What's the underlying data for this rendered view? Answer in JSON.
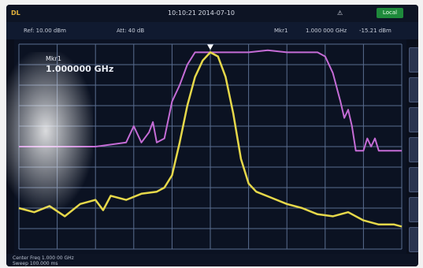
{
  "header": {
    "brand": "DL",
    "datetime": "10:10:21 2014-07-10",
    "lock_status": "Local"
  },
  "infobar": {
    "ref_level": "Ref: 10.00 dBm",
    "attenuation": "Att: 40 dB",
    "marker_label": "Mkr1",
    "marker_freq": "1.000 000 GHz",
    "marker_power": "-15.21 dBm"
  },
  "marker_readout": {
    "label": "Mkr1",
    "frequency": "1.000000 GHz"
  },
  "footer": {
    "center_freq": "Center Freq 1.000 00 GHz",
    "sweep": "Sweep 100.000 ms"
  },
  "trace_colors": {
    "filter_response": "#c56cd6",
    "signal_spectrum": "#e6d84a",
    "grid": "#5a6d90"
  },
  "chart_data": {
    "type": "line",
    "series": [
      {
        "values": [
          [
            0.0,
            -50
          ],
          [
            10,
            -50
          ],
          [
            20,
            -50
          ],
          [
            28,
            -48
          ],
          [
            30,
            -40
          ],
          [
            32,
            -48
          ],
          [
            34,
            -43
          ],
          [
            35,
            -38
          ],
          [
            36,
            -48
          ],
          [
            38,
            -46
          ],
          [
            40,
            -28
          ],
          [
            42,
            -20
          ],
          [
            44,
            -10
          ],
          [
            46,
            -4
          ],
          [
            48,
            -4
          ],
          [
            60,
            -4
          ],
          [
            65,
            -3
          ],
          [
            70,
            -4
          ],
          [
            78,
            -4
          ],
          [
            80,
            -6
          ],
          [
            82,
            -14
          ],
          [
            84,
            -28
          ],
          [
            85,
            -36
          ],
          [
            86,
            -32
          ],
          [
            87,
            -40
          ],
          [
            88,
            -52
          ],
          [
            90,
            -52
          ],
          [
            91,
            -46
          ],
          [
            92,
            -50
          ],
          [
            93,
            -46
          ],
          [
            94,
            -52
          ],
          [
            96,
            -52
          ],
          [
            100,
            -52
          ]
        ]
      },
      {
        "values": [
          [
            0.0,
            -80
          ],
          [
            4,
            -82
          ],
          [
            8,
            -79
          ],
          [
            12,
            -84
          ],
          [
            16,
            -78
          ],
          [
            20,
            -76
          ],
          [
            22,
            -81
          ],
          [
            24,
            -74
          ],
          [
            28,
            -76
          ],
          [
            32,
            -73
          ],
          [
            36,
            -72
          ],
          [
            38,
            -70
          ],
          [
            40,
            -64
          ],
          [
            42,
            -48
          ],
          [
            44,
            -30
          ],
          [
            46,
            -16
          ],
          [
            48,
            -8
          ],
          [
            50,
            -4
          ],
          [
            52,
            -6
          ],
          [
            54,
            -16
          ],
          [
            56,
            -34
          ],
          [
            58,
            -56
          ],
          [
            60,
            -68
          ],
          [
            62,
            -72
          ],
          [
            66,
            -75
          ],
          [
            70,
            -78
          ],
          [
            74,
            -80
          ],
          [
            78,
            -83
          ],
          [
            82,
            -84
          ],
          [
            86,
            -82
          ],
          [
            90,
            -86
          ],
          [
            94,
            -88
          ],
          [
            98,
            -88
          ],
          [
            100,
            -89
          ]
        ]
      }
    ],
    "xlim": [
      0,
      100
    ],
    "ylim": [
      -100,
      0
    ],
    "grid": true
  }
}
